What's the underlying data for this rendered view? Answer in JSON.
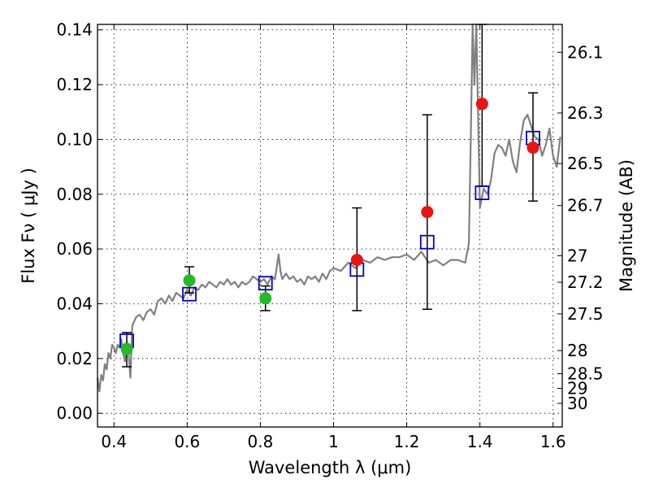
{
  "chart_data": {
    "type": "scatter",
    "xlabel": "Wavelength  λ (μm)",
    "ylabel": "Flux  Fν  ( μJy )",
    "y2label": "Magnitude (AB)",
    "xlim": [
      0.355,
      1.625
    ],
    "ylim": [
      -0.005,
      0.142
    ],
    "x_ticks": [
      0.4,
      0.6,
      0.8,
      1.0,
      1.2,
      1.4,
      1.6
    ],
    "x_tick_labels": [
      "0.4",
      "0.6",
      "0.8",
      "1",
      "1.2",
      "1.4",
      "1.6"
    ],
    "y_ticks": [
      0.0,
      0.02,
      0.04,
      0.06,
      0.08,
      0.1,
      0.12,
      0.14
    ],
    "y_tick_labels": [
      "0.00",
      "0.02",
      "0.04",
      "0.06",
      "0.08",
      "0.10",
      "0.12",
      "0.14"
    ],
    "y2_tick_labels": [
      "26.1",
      "26.3",
      "26.5",
      "26.7",
      "27",
      "27.2",
      "27.5",
      "28",
      "28.5",
      "29",
      "30"
    ],
    "grid": true,
    "colors": {
      "model_spectrum": "#808080",
      "optical_points": "#22bb22",
      "nir_points": "#ee1111",
      "model_photometry": "#0000cc",
      "error_bars": "#000000"
    },
    "series": [
      {
        "marker": "line",
        "x": [
          0.355,
          0.36,
          0.365,
          0.37,
          0.375,
          0.38,
          0.385,
          0.39,
          0.395,
          0.4,
          0.405,
          0.41,
          0.415,
          0.42,
          0.425,
          0.43,
          0.435,
          0.44,
          0.445,
          0.45,
          0.46,
          0.47,
          0.48,
          0.49,
          0.5,
          0.51,
          0.52,
          0.53,
          0.54,
          0.55,
          0.56,
          0.57,
          0.58,
          0.59,
          0.6,
          0.61,
          0.62,
          0.63,
          0.64,
          0.65,
          0.66,
          0.67,
          0.68,
          0.69,
          0.7,
          0.71,
          0.72,
          0.73,
          0.74,
          0.75,
          0.76,
          0.77,
          0.78,
          0.79,
          0.8,
          0.81,
          0.82,
          0.83,
          0.84,
          0.85,
          0.855,
          0.86,
          0.87,
          0.88,
          0.89,
          0.9,
          0.91,
          0.92,
          0.93,
          0.94,
          0.95,
          0.96,
          0.97,
          0.98,
          0.99,
          1.0,
          1.02,
          1.04,
          1.06,
          1.08,
          1.1,
          1.12,
          1.14,
          1.16,
          1.18,
          1.2,
          1.22,
          1.24,
          1.26,
          1.28,
          1.3,
          1.32,
          1.34,
          1.36,
          1.37,
          1.375,
          1.38,
          1.385,
          1.39,
          1.4,
          1.41,
          1.42,
          1.43,
          1.44,
          1.45,
          1.46,
          1.47,
          1.48,
          1.49,
          1.5,
          1.51,
          1.52,
          1.53,
          1.54,
          1.55,
          1.56,
          1.57,
          1.58,
          1.59,
          1.6,
          1.61,
          1.62
        ],
        "y": [
          0.013,
          0.008,
          0.014,
          0.012,
          0.018,
          0.016,
          0.022,
          0.02,
          0.025,
          0.024,
          0.022,
          0.025,
          0.024,
          0.027,
          0.022,
          0.019,
          0.026,
          0.022,
          0.013,
          0.032,
          0.035,
          0.036,
          0.034,
          0.037,
          0.038,
          0.036,
          0.041,
          0.042,
          0.04,
          0.043,
          0.041,
          0.044,
          0.043,
          0.042,
          0.045,
          0.043,
          0.046,
          0.045,
          0.047,
          0.046,
          0.048,
          0.047,
          0.046,
          0.048,
          0.047,
          0.049,
          0.047,
          0.048,
          0.046,
          0.048,
          0.047,
          0.048,
          0.05,
          0.049,
          0.048,
          0.049,
          0.047,
          0.05,
          0.049,
          0.058,
          0.052,
          0.049,
          0.051,
          0.049,
          0.05,
          0.048,
          0.049,
          0.047,
          0.05,
          0.049,
          0.05,
          0.048,
          0.051,
          0.049,
          0.052,
          0.053,
          0.052,
          0.055,
          0.053,
          0.056,
          0.055,
          0.057,
          0.056,
          0.057,
          0.057,
          0.058,
          0.056,
          0.059,
          0.055,
          0.056,
          0.054,
          0.056,
          0.056,
          0.055,
          0.062,
          0.1,
          0.142,
          0.12,
          0.142,
          0.075,
          0.082,
          0.08,
          0.085,
          0.095,
          0.098,
          0.097,
          0.094,
          0.1,
          0.092,
          0.088,
          0.099,
          0.107,
          0.109,
          0.105,
          0.101,
          0.1,
          0.094,
          0.098,
          0.104,
          0.094,
          0.09,
          0.101
        ]
      },
      {
        "marker": "circle",
        "x": [
          0.435,
          0.606,
          0.814
        ],
        "y": [
          0.0235,
          0.0485,
          0.042
        ],
        "err_low": [
          0.017,
          0.044,
          0.0375
        ],
        "err_high": [
          0.0295,
          0.0535,
          0.0465
        ]
      },
      {
        "marker": "circle",
        "x": [
          1.064,
          1.256,
          1.406,
          1.545
        ],
        "y": [
          0.056,
          0.0735,
          0.113,
          0.097
        ],
        "err_low": [
          0.0375,
          0.038,
          0.083,
          0.0775
        ],
        "err_high": [
          0.075,
          0.109,
          0.142,
          0.117
        ]
      },
      {
        "marker": "square",
        "x": [
          0.435,
          0.606,
          0.814,
          1.064,
          1.256,
          1.406,
          1.545
        ],
        "y": [
          0.0265,
          0.0435,
          0.0475,
          0.0525,
          0.0625,
          0.0805,
          0.1005
        ]
      }
    ]
  }
}
